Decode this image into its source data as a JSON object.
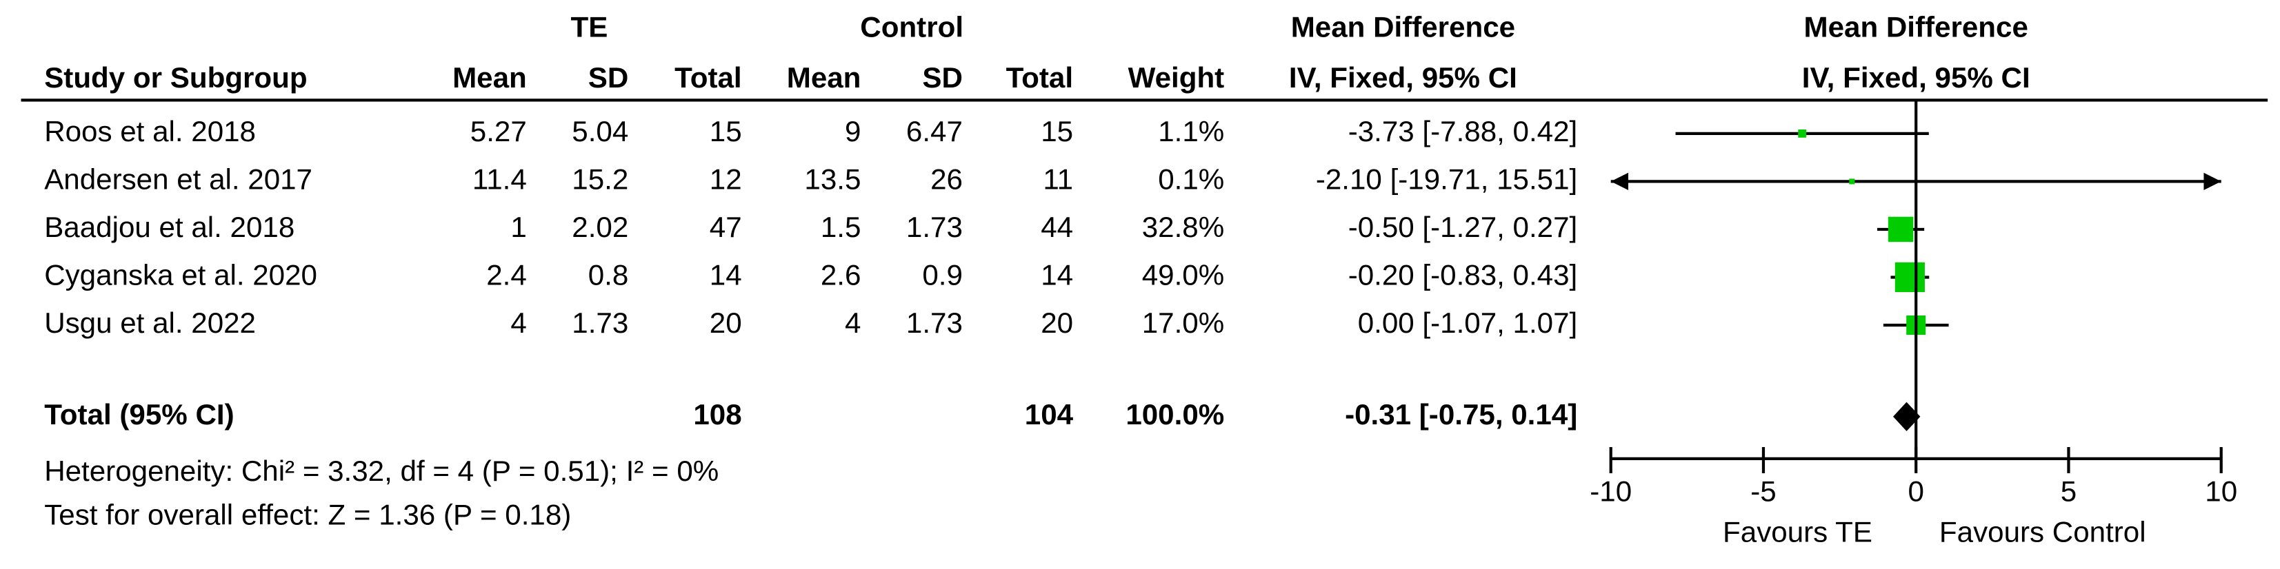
{
  "chart_data": {
    "type": "forest",
    "group_headers": [
      "TE",
      "Control",
      "Mean Difference",
      "Mean Difference"
    ],
    "column_headers": [
      "Study or Subgroup",
      "Mean",
      "SD",
      "Total",
      "Mean",
      "SD",
      "Total",
      "Weight",
      "IV, Fixed, 95% CI",
      "IV, Fixed, 95% CI"
    ],
    "studies": [
      {
        "name": "Roos et al. 2018",
        "te_mean": 5.27,
        "te_sd": 5.04,
        "te_total": 15,
        "c_mean": 9,
        "c_sd": 6.47,
        "c_total": 15,
        "weight": 1.1,
        "weight_label": "1.1%",
        "md": -3.73,
        "lo": -7.88,
        "hi": 0.42,
        "ci_label": "-3.73 [-7.88, 0.42]"
      },
      {
        "name": "Andersen et al. 2017",
        "te_mean": 11.4,
        "te_sd": 15.2,
        "te_total": 12,
        "c_mean": 13.5,
        "c_sd": 26,
        "c_total": 11,
        "weight": 0.1,
        "weight_label": "0.1%",
        "md": -2.1,
        "lo": -19.71,
        "hi": 15.51,
        "ci_label": "-2.10 [-19.71, 15.51]"
      },
      {
        "name": "Baadjou et al. 2018",
        "te_mean": 1,
        "te_sd": 2.02,
        "te_total": 47,
        "c_mean": 1.5,
        "c_sd": 1.73,
        "c_total": 44,
        "weight": 32.8,
        "weight_label": "32.8%",
        "md": -0.5,
        "lo": -1.27,
        "hi": 0.27,
        "ci_label": "-0.50 [-1.27, 0.27]"
      },
      {
        "name": "Cyganska et al. 2020",
        "te_mean": 2.4,
        "te_sd": 0.8,
        "te_total": 14,
        "c_mean": 2.6,
        "c_sd": 0.9,
        "c_total": 14,
        "weight": 49.0,
        "weight_label": "49.0%",
        "md": -0.2,
        "lo": -0.83,
        "hi": 0.43,
        "ci_label": "-0.20 [-0.83, 0.43]"
      },
      {
        "name": "Usgu et al. 2022",
        "te_mean": 4,
        "te_sd": 1.73,
        "te_total": 20,
        "c_mean": 4,
        "c_sd": 1.73,
        "c_total": 20,
        "weight": 17.0,
        "weight_label": "17.0%",
        "md": 0.0,
        "lo": -1.07,
        "hi": 1.07,
        "ci_label": "0.00 [-1.07, 1.07]"
      }
    ],
    "total": {
      "name": "Total (95% CI)",
      "te_total": 108,
      "c_total": 104,
      "weight": 100.0,
      "weight_label": "100.0%",
      "md": -0.31,
      "lo": -0.75,
      "hi": 0.14,
      "ci_label": "-0.31 [-0.75, 0.14]"
    },
    "heterogeneity": "Heterogeneity: Chi² = 3.32, df = 4 (P = 0.51); I² = 0%",
    "overall_effect": "Test for overall effect: Z = 1.36 (P = 0.18)",
    "xlim": [
      -10,
      10
    ],
    "xticks": [
      -10,
      -5,
      0,
      5,
      10
    ],
    "favours": [
      "Favours TE",
      "Favours Control"
    ],
    "color": "#00cc00"
  }
}
